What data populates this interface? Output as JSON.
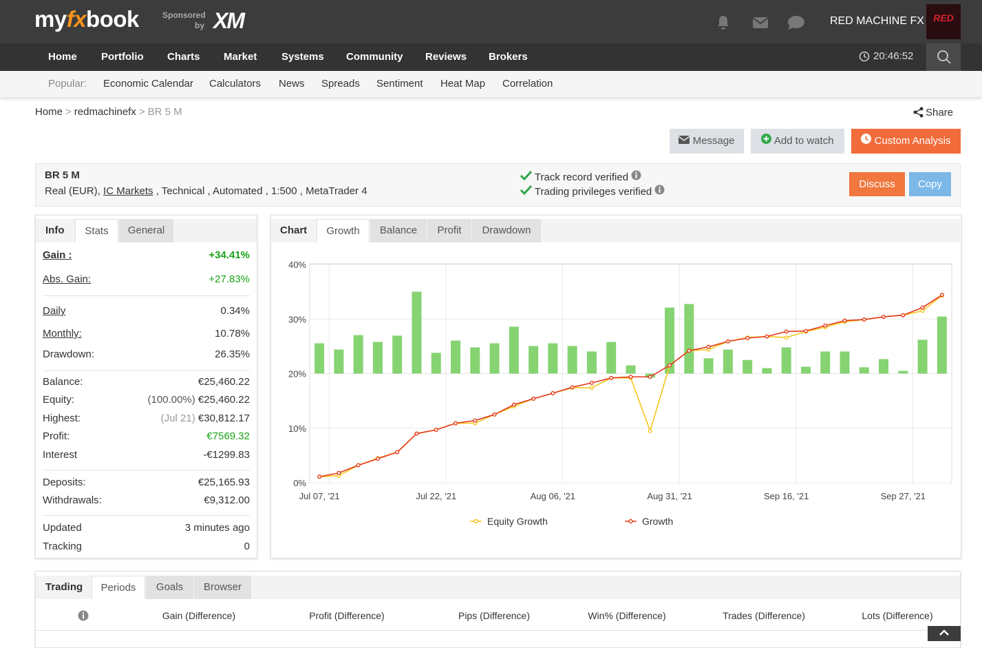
{
  "header": {
    "logo": [
      "my",
      "fx",
      "book"
    ],
    "sponsor": [
      "Sponsored",
      "by"
    ],
    "sponsor_brand": "XM",
    "user": "RED MACHINE FX",
    "avatar_text": "RED"
  },
  "nav": {
    "items": [
      "Home",
      "Portfolio",
      "Charts",
      "Market",
      "Systems",
      "Community",
      "Reviews",
      "Brokers"
    ],
    "time": "20:46:52"
  },
  "popular": {
    "label": "Popular:",
    "items": [
      "Economic Calendar",
      "Calculators",
      "News",
      "Spreads",
      "Sentiment",
      "Heat Map",
      "Correlation"
    ]
  },
  "breadcrumb": {
    "items": [
      "Home",
      "redmachinefx",
      "BR 5 M"
    ],
    "separator": ">"
  },
  "share": "Share",
  "actions": [
    "Message",
    "Add to watch",
    "Custom Analysis"
  ],
  "system": {
    "name": "BR 5 M",
    "account": "Real (EUR),",
    "broker": "IC Markets",
    "details": ", Technical , Automated , 1:500 , MetaTrader 4",
    "verified": [
      "Track record verified",
      "Trading privileges verified"
    ],
    "buttons": [
      "Discuss",
      "Copy"
    ]
  },
  "info_panel": {
    "tabs": [
      "Info",
      "Stats",
      "General"
    ],
    "groups": [
      [
        {
          "label": "Gain :",
          "value": "+34.41%"
        },
        {
          "label": "Abs. Gain:",
          "value": "+27.83%"
        }
      ],
      [
        {
          "label": "Daily",
          "value": "0.34%"
        },
        {
          "label": "Monthly:",
          "value": "10.78%"
        },
        {
          "label": "Drawdown:",
          "value": "26.35%"
        }
      ],
      [
        {
          "label": "Balance:",
          "value": "€25,460.22"
        },
        {
          "label": "Equity:",
          "note": "(100.00%)",
          "value": "€25,460.22"
        },
        {
          "label": "Highest:",
          "note": "(Jul 21)",
          "value": "€30,812.17"
        },
        {
          "label": "Profit:",
          "value": "€7569.32"
        },
        {
          "label": "Interest",
          "value": "-€1299.83"
        }
      ],
      [
        {
          "label": "Deposits:",
          "value": "€25,165.93"
        },
        {
          "label": "Withdrawals:",
          "value": "€9,312.00"
        }
      ],
      [
        {
          "label": "Updated",
          "value": "3 minutes ago"
        },
        {
          "label": "Tracking",
          "value": "0"
        }
      ]
    ]
  },
  "chart_panel": {
    "tabs": [
      "Chart",
      "Growth",
      "Balance",
      "Profit",
      "Drawdown"
    ]
  },
  "chart_data": {
    "type": "line",
    "categories": [
      "Jul 07, '21",
      null,
      null,
      null,
      null,
      null,
      "Jul 22, '21",
      null,
      null,
      null,
      null,
      null,
      "Aug 06, '21",
      null,
      null,
      null,
      null,
      null,
      "Aug 31, '21",
      null,
      null,
      null,
      null,
      null,
      "Sep 16, '21",
      null,
      null,
      null,
      null,
      null,
      "Sep 27, '21",
      null,
      null
    ],
    "series": [
      {
        "name": "Equity Growth",
        "color": "#f5c518",
        "values": [
          1.1,
          1.3,
          3.2,
          4.5,
          5.6,
          9.0,
          9.7,
          10.9,
          10.9,
          12.5,
          14.0,
          15.4,
          16.4,
          17.4,
          17.4,
          19.2,
          19.2,
          9.5,
          21.5,
          24.2,
          24.4,
          25.9,
          26.6,
          26.8,
          26.6,
          27.7,
          28.5,
          29.5,
          29.9,
          30.4,
          30.7,
          31.5,
          34.3
        ]
      },
      {
        "name": "Growth",
        "color": "#e5391c",
        "values": [
          1.1,
          1.8,
          3.2,
          4.4,
          5.6,
          9.0,
          9.7,
          10.9,
          11.4,
          12.5,
          14.3,
          15.4,
          16.4,
          17.5,
          18.3,
          19.2,
          19.4,
          19.4,
          21.5,
          24.2,
          24.9,
          25.9,
          26.5,
          26.8,
          27.7,
          27.8,
          28.8,
          29.7,
          29.9,
          30.4,
          30.7,
          32.1,
          34.41
        ]
      },
      {
        "type": "bar",
        "axis": "y2",
        "color": "#86d372",
        "values": [
          1.11,
          0.88,
          1.41,
          1.16,
          1.39,
          3.0,
          0.76,
          1.21,
          0.96,
          1.11,
          1.72,
          1.01,
          1.11,
          1.01,
          0.81,
          1.16,
          0.3,
          -0.15,
          2.42,
          2.55,
          0.56,
          0.88,
          0.5,
          0.2,
          0.96,
          0.25,
          0.81,
          0.81,
          0.23,
          0.53,
          0.1,
          1.24,
          2.09
        ]
      }
    ],
    "ylim": [
      0,
      40
    ],
    "yticks": [
      {
        "value": 0,
        "label": "0%"
      },
      {
        "value": 10,
        "label": "10%"
      },
      {
        "value": 20,
        "label": "20%"
      },
      {
        "value": 30,
        "label": "30%"
      },
      {
        "value": 40,
        "label": "40%"
      }
    ],
    "y2lim": [
      -4,
      4
    ],
    "grid": true,
    "legend": "bottom"
  },
  "periods_panel": {
    "tabs": [
      "Trading",
      "Periods",
      "Goals",
      "Browser"
    ],
    "columns": [
      "Gain (Difference)",
      "Profit (Difference)",
      "Pips (Difference)",
      "Win% (Difference)",
      "Trades (Difference)",
      "Lots (Difference)"
    ]
  }
}
